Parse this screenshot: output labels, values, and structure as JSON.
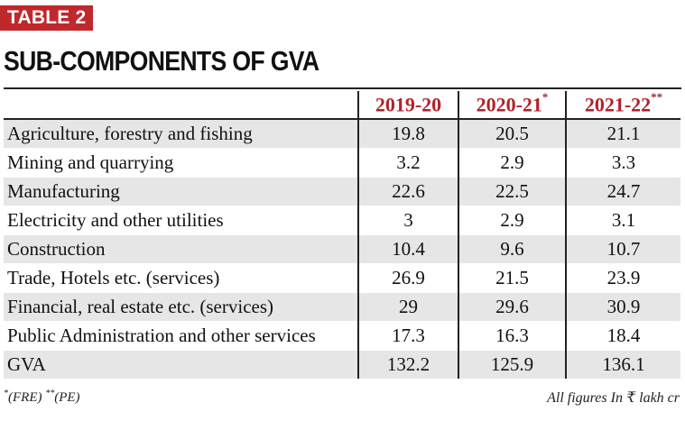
{
  "badge": "TABLE 2",
  "title": "SUB-COMPONENTS OF GVA",
  "headers": [
    {
      "text": "2019-20",
      "mark": ""
    },
    {
      "text": "2020-21",
      "mark": "*"
    },
    {
      "text": "2021-22",
      "mark": "**"
    }
  ],
  "rows": [
    {
      "label": "Agriculture, forestry and fishing",
      "values": [
        "19.8",
        "20.5",
        "21.1"
      ]
    },
    {
      "label": "Mining and quarrying",
      "values": [
        "3.2",
        "2.9",
        "3.3"
      ]
    },
    {
      "label": "Manufacturing",
      "values": [
        "22.6",
        "22.5",
        "24.7"
      ]
    },
    {
      "label": "Electricity and other utilities",
      "values": [
        "3",
        "2.9",
        "3.1"
      ]
    },
    {
      "label": "Construction",
      "values": [
        "10.4",
        "9.6",
        "10.7"
      ]
    },
    {
      "label": "Trade, Hotels etc. (services)",
      "values": [
        "26.9",
        "21.5",
        "23.9"
      ]
    },
    {
      "label": "Financial, real estate etc. (services)",
      "values": [
        "29",
        "29.6",
        "30.9"
      ]
    },
    {
      "label": "Public Administration and other services",
      "values": [
        "17.3",
        "16.3",
        "18.4"
      ]
    },
    {
      "label": "GVA",
      "values": [
        "132.2",
        "125.9",
        "136.1"
      ]
    }
  ],
  "footnote": {
    "mark1": "*",
    "text1": "(FRE)",
    "mark2": "**",
    "text2": "(PE)"
  },
  "units_note": "All figures In ₹ lakh cr",
  "colors": {
    "badge_bg": "#c0282d",
    "header_text": "#b4202a",
    "stripe": "#e6e6e6"
  }
}
